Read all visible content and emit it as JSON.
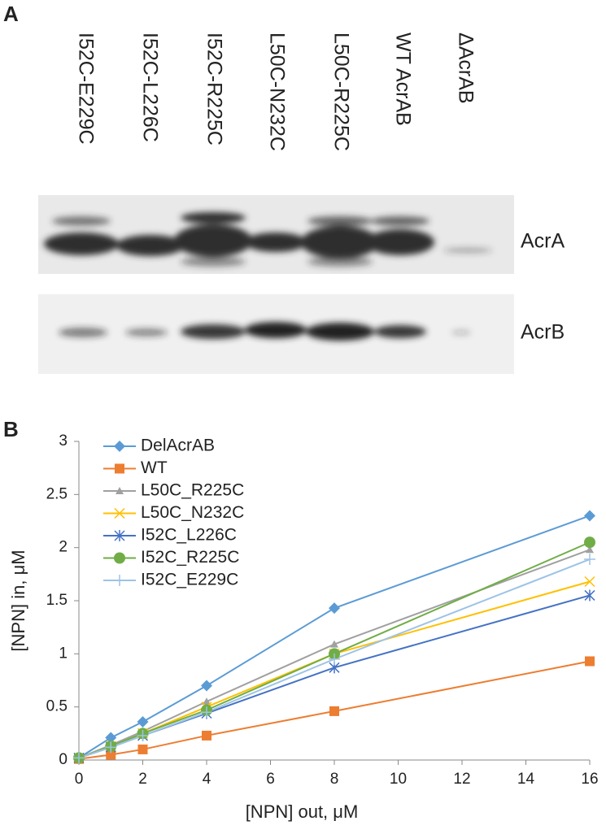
{
  "panels": {
    "a": "A",
    "b": "B"
  },
  "blot": {
    "lanes": [
      "I52C-E229C",
      "I52C-L226C",
      "I52C-R225C",
      "L50C-N232C",
      "L50C-R225C",
      "WT AcrAB",
      "ΔAcrAB"
    ],
    "rows": [
      "AcrA",
      "AcrB"
    ]
  },
  "chart_data": {
    "type": "line",
    "x_label": "[NPN] out, μM",
    "y_label": "[NPN] in, μM",
    "x": [
      0,
      1,
      2,
      4,
      8,
      16
    ],
    "xlim": [
      0,
      16
    ],
    "xticks": [
      0,
      2,
      4,
      6,
      8,
      10,
      12,
      14,
      16
    ],
    "ylim": [
      0,
      3
    ],
    "yticks": [
      0,
      0.5,
      1,
      1.5,
      2,
      2.5,
      3
    ],
    "legend": "upper left",
    "series": [
      {
        "name": "DelAcrAB",
        "color": "#5b9bd5",
        "marker": "diamond",
        "values": [
          0.02,
          0.21,
          0.36,
          0.7,
          1.43,
          2.3
        ]
      },
      {
        "name": "WT",
        "color": "#ed7d31",
        "marker": "square",
        "values": [
          0.01,
          0.05,
          0.1,
          0.23,
          0.46,
          0.93
        ]
      },
      {
        "name": "L50C_R225C",
        "color": "#a0a0a0",
        "marker": "triangle",
        "values": [
          0.02,
          0.14,
          0.27,
          0.55,
          1.09,
          1.98
        ]
      },
      {
        "name": "L50C_N232C",
        "color": "#ffc000",
        "marker": "x",
        "values": [
          0.02,
          0.13,
          0.25,
          0.5,
          1.0,
          1.68
        ]
      },
      {
        "name": "I52C_L226C",
        "color": "#4472c4",
        "marker": "star",
        "values": [
          0.02,
          0.12,
          0.23,
          0.44,
          0.87,
          1.55
        ]
      },
      {
        "name": "I52C_R225C",
        "color": "#70ad47",
        "marker": "circle",
        "values": [
          0.02,
          0.13,
          0.25,
          0.47,
          1.0,
          2.05
        ]
      },
      {
        "name": "I52C_E229C",
        "color": "#9dc3e6",
        "marker": "plus",
        "values": [
          0.02,
          0.12,
          0.23,
          0.45,
          0.95,
          1.89
        ]
      }
    ]
  }
}
